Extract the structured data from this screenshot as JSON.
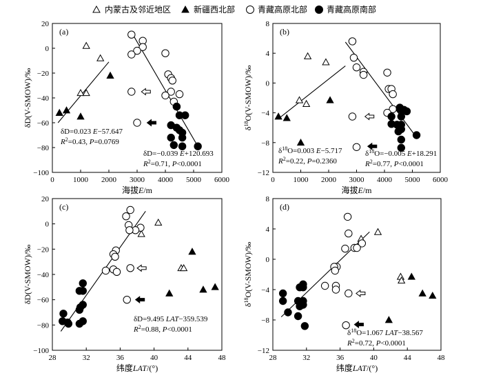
{
  "legend": [
    {
      "label": "内蒙古及邻近地区",
      "marker": "open-triangle"
    },
    {
      "label": "新疆西北部",
      "marker": "filled-triangle"
    },
    {
      "label": "青藏高原北部",
      "marker": "open-circle"
    },
    {
      "label": "青藏高原南部",
      "marker": "filled-circle"
    }
  ],
  "chart_data": [
    {
      "type": "scatter",
      "panel_label": "(a)",
      "xlabel": "海拔E/m",
      "ylabel": "δD(V-SMOW)/‰",
      "xlim": [
        0,
        6000
      ],
      "ylim": [
        -100,
        20
      ],
      "xticks": [
        0,
        1000,
        2000,
        3000,
        4000,
        5000,
        6000
      ],
      "yticks": [
        -100,
        -80,
        -60,
        -40,
        -20,
        0,
        20
      ],
      "series": [
        {
          "marker": "open-triangle",
          "points": [
            [
              1700,
              -8
            ],
            [
              1200,
              2
            ],
            [
              1000,
              -36
            ],
            [
              1200,
              -36
            ]
          ]
        },
        {
          "marker": "filled-triangle",
          "points": [
            [
              250,
              -52
            ],
            [
              500,
              -50
            ],
            [
              1000,
              -55
            ],
            [
              2050,
              -22
            ]
          ]
        },
        {
          "marker": "open-circle",
          "points": [
            [
              2800,
              11
            ],
            [
              3200,
              6
            ],
            [
              3200,
              1
            ],
            [
              3000,
              -2
            ],
            [
              2800,
              -5
            ],
            [
              4000,
              -4
            ],
            [
              4100,
              -21
            ],
            [
              4200,
              -24
            ],
            [
              4250,
              -26
            ],
            [
              4200,
              -35
            ],
            [
              4500,
              -37
            ],
            [
              4000,
              -38
            ],
            [
              4300,
              -43
            ],
            [
              4400,
              -47
            ],
            [
              2800,
              -35
            ],
            [
              3000,
              -60
            ]
          ]
        },
        {
          "marker": "filled-circle",
          "points": [
            [
              4400,
              -47
            ],
            [
              4500,
              -54
            ],
            [
              4700,
              -54
            ],
            [
              4200,
              -62
            ],
            [
              4400,
              -64
            ],
            [
              4500,
              -66
            ],
            [
              4600,
              -68
            ],
            [
              4200,
              -72
            ],
            [
              4600,
              -72
            ],
            [
              4300,
              -78
            ],
            [
              4600,
              -79
            ],
            [
              5150,
              -79
            ]
          ]
        }
      ],
      "arrows": [
        {
          "at": [
            3300,
            -35
          ],
          "style": "open"
        },
        {
          "at": [
            3500,
            -60
          ],
          "style": "filled"
        }
      ],
      "fits": [
        {
          "x": [
            200,
            2000
          ],
          "y": [
            -60,
            -11
          ]
        },
        {
          "x": [
            2850,
            5150
          ],
          "y": [
            11,
            -79
          ]
        }
      ],
      "annotations": [
        {
          "lines": [
            "δD=0.023 E−57.647",
            "R²=0.43, P=0.0769"
          ]
        },
        {
          "lines": [
            "δD=−0.039 E+120.693",
            "R²=0.71, P<0.0001"
          ]
        }
      ]
    },
    {
      "type": "scatter",
      "panel_label": "(b)",
      "xlabel": "海拔E/m",
      "ylabel": "δ¹⁸O(V-SMOW)/‰",
      "xlim": [
        0,
        6000
      ],
      "ylim": [
        -12,
        8
      ],
      "xticks": [
        0,
        1000,
        2000,
        3000,
        4000,
        5000,
        6000
      ],
      "yticks": [
        -12,
        -8,
        -4,
        0,
        4,
        8
      ],
      "series": [
        {
          "marker": "open-triangle",
          "points": [
            [
              1250,
              3.6
            ],
            [
              1900,
              2.8
            ],
            [
              950,
              -2.3
            ],
            [
              1200,
              -2.8
            ]
          ]
        },
        {
          "marker": "filled-triangle",
          "points": [
            [
              200,
              -4.5
            ],
            [
              500,
              -4.7
            ],
            [
              1000,
              -8.0
            ],
            [
              2050,
              -2.3
            ]
          ]
        },
        {
          "marker": "open-circle",
          "points": [
            [
              2850,
              5.6
            ],
            [
              2900,
              3.4
            ],
            [
              3000,
              2.1
            ],
            [
              3250,
              1.5
            ],
            [
              3250,
              1.1
            ],
            [
              4100,
              1.4
            ],
            [
              4150,
              -0.8
            ],
            [
              4250,
              -0.8
            ],
            [
              4300,
              -1.5
            ],
            [
              4300,
              -3.5
            ],
            [
              4100,
              -4.0
            ],
            [
              2850,
              -4.5
            ],
            [
              3000,
              -8.6
            ]
          ]
        },
        {
          "marker": "filled-circle",
          "points": [
            [
              4550,
              -3.3
            ],
            [
              4550,
              -3.5
            ],
            [
              4700,
              -3.6
            ],
            [
              4800,
              -3.8
            ],
            [
              4250,
              -4.5
            ],
            [
              4600,
              -4.5
            ],
            [
              4250,
              -5.5
            ],
            [
              4450,
              -5.6
            ],
            [
              4600,
              -5.6
            ],
            [
              4600,
              -6.2
            ],
            [
              4500,
              -6.5
            ],
            [
              5150,
              -7.0
            ],
            [
              4600,
              -7.6
            ],
            [
              4600,
              -8.7
            ]
          ]
        }
      ],
      "arrows": [
        {
          "at": [
            3450,
            -4.5
          ],
          "style": "open"
        },
        {
          "at": [
            3550,
            -8.5
          ],
          "style": "filled"
        }
      ],
      "fits": [
        {
          "x": [
            200,
            2600
          ],
          "y": [
            -4.8,
            2.3
          ]
        },
        {
          "x": [
            2600,
            5150
          ],
          "y": [
            5.5,
            -7.3
          ]
        }
      ],
      "annotations": [
        {
          "lines": [
            "δ¹⁸O=0.003 E−5.717",
            "R²=0.22, P=0.2360"
          ]
        },
        {
          "lines": [
            "δ¹⁸O=−0.005 E+18.291",
            "R²=0.77, P<0.0001"
          ]
        }
      ]
    },
    {
      "type": "scatter",
      "panel_label": "(c)",
      "xlabel": "纬度LAT/(°)",
      "ylabel": "δD(V-SMOW)/‰",
      "xlim": [
        28,
        48
      ],
      "ylim": [
        -100,
        20
      ],
      "xticks": [
        28,
        32,
        36,
        40,
        44,
        48
      ],
      "yticks": [
        -100,
        -80,
        -60,
        -40,
        -20,
        0,
        20
      ],
      "series": [
        {
          "marker": "open-triangle",
          "points": [
            [
              40.5,
              1
            ],
            [
              38.5,
              -8
            ],
            [
              43.2,
              -35
            ],
            [
              43.5,
              -35
            ]
          ]
        },
        {
          "marker": "filled-triangle",
          "points": [
            [
              44.5,
              -22
            ],
            [
              41.8,
              -55
            ],
            [
              45.8,
              -52
            ],
            [
              47.2,
              -50
            ]
          ]
        },
        {
          "marker": "open-circle",
          "points": [
            [
              37.2,
              11
            ],
            [
              36.7,
              6
            ],
            [
              37.0,
              -1
            ],
            [
              38.4,
              -3
            ],
            [
              37.8,
              -5
            ],
            [
              37.1,
              -5
            ],
            [
              35.5,
              -21
            ],
            [
              35.2,
              -24
            ],
            [
              35.4,
              -26
            ],
            [
              35.2,
              -36
            ],
            [
              34.3,
              -37
            ],
            [
              35.6,
              -38
            ],
            [
              37.2,
              -35
            ],
            [
              36.8,
              -60
            ]
          ]
        },
        {
          "marker": "filled-circle",
          "points": [
            [
              31.6,
              -47
            ],
            [
              31.2,
              -53
            ],
            [
              31.6,
              -53
            ],
            [
              31.6,
              -64
            ],
            [
              31.3,
              -66
            ],
            [
              31.2,
              -68
            ],
            [
              29.3,
              -71
            ],
            [
              29.2,
              -77
            ],
            [
              31.6,
              -77
            ],
            [
              29.8,
              -78
            ],
            [
              31.2,
              -79
            ],
            [
              29.9,
              -79
            ]
          ]
        }
      ],
      "arrows": [
        {
          "at": [
            38.5,
            -35
          ],
          "style": "open"
        },
        {
          "at": [
            38.3,
            -60
          ],
          "style": "filled"
        }
      ],
      "fits": [
        {
          "x": [
            29,
            39
          ],
          "y": [
            -85,
            10
          ]
        }
      ],
      "annotations": [
        {
          "lines": [
            "δD=9.495 LAT−359.539",
            "R²=0.88, P<0.0001"
          ]
        }
      ]
    },
    {
      "type": "scatter",
      "panel_label": "(d)",
      "xlabel": "纬度LAT/(°)",
      "ylabel": "δ¹⁸O(V-SMOW)/‰",
      "xlim": [
        28,
        48
      ],
      "ylim": [
        -12,
        8
      ],
      "xticks": [
        28,
        32,
        36,
        40,
        44,
        48
      ],
      "yticks": [
        -12,
        -8,
        -4,
        0,
        4,
        8
      ],
      "series": [
        {
          "marker": "open-triangle",
          "points": [
            [
              40.5,
              3.6
            ],
            [
              38.5,
              2.7
            ],
            [
              43.2,
              -2.3
            ],
            [
              43.3,
              -2.8
            ]
          ]
        },
        {
          "marker": "filled-triangle",
          "points": [
            [
              44.5,
              -2.3
            ],
            [
              41.8,
              -8.0
            ],
            [
              45.8,
              -4.5
            ],
            [
              47.0,
              -4.8
            ]
          ]
        },
        {
          "marker": "open-circle",
          "points": [
            [
              36.9,
              5.6
            ],
            [
              37.0,
              3.4
            ],
            [
              38.6,
              2.1
            ],
            [
              37.7,
              1.5
            ],
            [
              38.0,
              1.5
            ],
            [
              36.6,
              1.4
            ],
            [
              35.6,
              -1.0
            ],
            [
              35.3,
              -1.0
            ],
            [
              35.4,
              -1.5
            ],
            [
              34.2,
              -3.5
            ],
            [
              35.5,
              -3.5
            ],
            [
              35.5,
              -4.0
            ],
            [
              37.0,
              -4.5
            ],
            [
              36.7,
              -8.7
            ]
          ]
        },
        {
          "marker": "filled-circle",
          "points": [
            [
              31.6,
              -3.3
            ],
            [
              31.2,
              -3.7
            ],
            [
              31.6,
              -3.7
            ],
            [
              29.2,
              -4.5
            ],
            [
              29.2,
              -5.5
            ],
            [
              31.0,
              -5.5
            ],
            [
              31.6,
              -5.5
            ],
            [
              31.6,
              -6.0
            ],
            [
              31.2,
              -6.2
            ],
            [
              29.8,
              -7.0
            ],
            [
              31.0,
              -7.5
            ],
            [
              31.8,
              -8.8
            ]
          ]
        }
      ],
      "arrows": [
        {
          "at": [
            38.4,
            -4.5
          ],
          "style": "open"
        },
        {
          "at": [
            38.2,
            -8.6
          ],
          "style": "filled"
        }
      ],
      "fits": [
        {
          "x": [
            29,
            39.5
          ],
          "y": [
            -7.6,
            3.6
          ]
        }
      ],
      "annotations": [
        {
          "lines": [
            "δ¹⁸O=1.067 LAT−38.567",
            "R²=0.72, P<0.0001"
          ]
        }
      ]
    }
  ]
}
